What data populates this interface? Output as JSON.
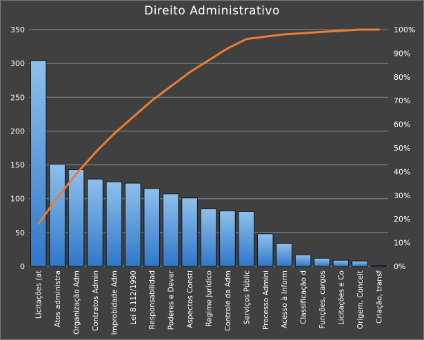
{
  "chart_data": {
    "type": "bar",
    "title": "Direito  Administrativo",
    "categories": [
      "Licitações (at",
      "Atos administra",
      "Organização Adm",
      "Contratos Admin",
      "Improbidade Adm",
      "Lei 8.112/1990",
      "Responsabilidad",
      "Poderes e Dever",
      "Aspectos Consti",
      "Regime Jurídico",
      "Controle da Adm",
      "Serviços Públic",
      "Processo Admini",
      "Acesso à Inform",
      "Classificação d",
      "Funções, cargos",
      "Licitações e Co",
      "Origem, Conceit",
      "Criação, transf"
    ],
    "series": [
      {
        "type": "bar",
        "axis": "left",
        "values": [
          304,
          151,
          143,
          129,
          125,
          123,
          115,
          107,
          101,
          85,
          82,
          81,
          48,
          34,
          17,
          12,
          9,
          8,
          1
        ]
      },
      {
        "type": "line",
        "axis": "right",
        "values": [
          0.18,
          0.29,
          0.39,
          0.48,
          0.56,
          0.63,
          0.7,
          0.76,
          0.82,
          0.87,
          0.92,
          0.96,
          0.97,
          0.98,
          0.985,
          0.99,
          0.995,
          1.0,
          1.0
        ]
      }
    ],
    "y_left": {
      "min": 0,
      "max": 350,
      "ticks": [
        "0",
        "50",
        "100",
        "150",
        "200",
        "250",
        "300",
        "350"
      ]
    },
    "y_right": {
      "min": 0,
      "max": 1,
      "ticks": [
        "0%",
        "10%",
        "20%",
        "30%",
        "40%",
        "50%",
        "60%",
        "70%",
        "80%",
        "90%",
        "100%"
      ]
    },
    "grid": true,
    "legend": "none",
    "colors": {
      "background": "#404040",
      "bar_top": "#8fc0ec",
      "bar_bottom": "#2f77c9",
      "line": "#ed7d31",
      "grid": "#8c8c8c",
      "text": "#ffffff"
    }
  }
}
